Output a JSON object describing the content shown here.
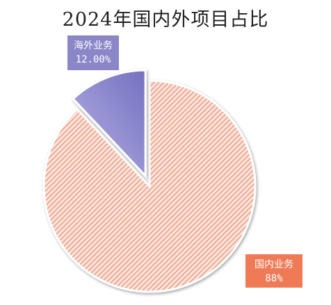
{
  "chart_data": {
    "type": "pie",
    "title": "2024年国内外项目占比",
    "slices": [
      {
        "name": "国内业务",
        "value": 88,
        "value_label": "88%",
        "color": "#f0a58e",
        "label_box_color": "#ef7a56",
        "exploded": false
      },
      {
        "name": "海外业务",
        "value": 12,
        "value_label": "12.00%",
        "color": "#8f8bd1",
        "label_box_color": "#8a86c8",
        "exploded": true
      }
    ],
    "start_angle_deg": 0,
    "direction": "clockwise",
    "legend": "none"
  }
}
